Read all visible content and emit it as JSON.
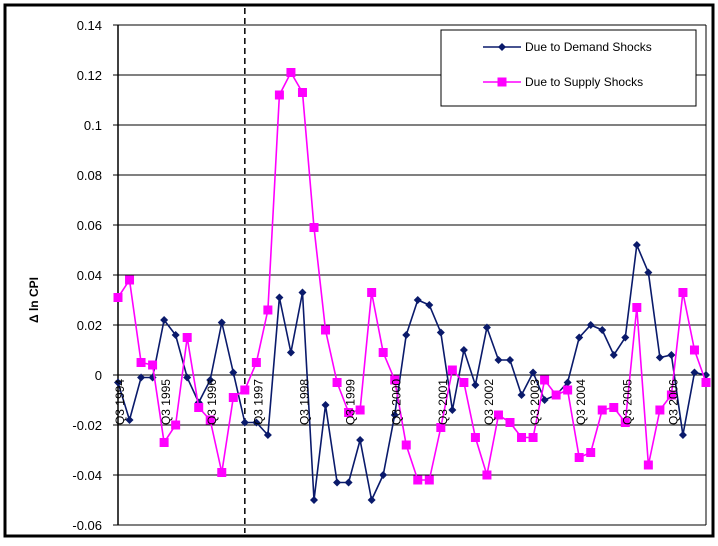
{
  "chart_data": {
    "type": "line",
    "title": "",
    "xlabel": "",
    "ylabel": "Δ ln CPI",
    "ylim": [
      -0.06,
      0.14
    ],
    "yticks": [
      -0.06,
      -0.04,
      -0.02,
      0,
      0.02,
      0.04,
      0.06,
      0.08,
      0.1,
      0.12,
      0.14
    ],
    "ytick_labels": [
      "-0.06",
      "-0.04",
      "-0.02",
      "0",
      "0.02",
      "0.04",
      "0.06",
      "0.08",
      "0.1",
      "0.12",
      "0.14"
    ],
    "grid": true,
    "legend_position": "top-right",
    "x_range": [
      1994.5,
      2007.25
    ],
    "x_tick_labels": [
      {
        "label": "Q3 1994",
        "x": 1994.5
      },
      {
        "label": "Q3 1995",
        "x": 1995.5
      },
      {
        "label": "Q3 1996",
        "x": 1996.5
      },
      {
        "label": "Q3 1997",
        "x": 1997.5
      },
      {
        "label": "Q3 1998",
        "x": 1998.5
      },
      {
        "label": "Q3 1999",
        "x": 1999.5
      },
      {
        "label": "Q3 2000",
        "x": 2000.5
      },
      {
        "label": "Q3 2001",
        "x": 2001.5
      },
      {
        "label": "Q3 2002",
        "x": 2002.5
      },
      {
        "label": "Q3 2003",
        "x": 2003.5
      },
      {
        "label": "Q3 2004",
        "x": 2004.5
      },
      {
        "label": "Q3 2005",
        "x": 2005.5
      },
      {
        "label": "Q3 2006",
        "x": 2006.5
      }
    ],
    "vline_x": 1997.25,
    "series": [
      {
        "name": "Due to Demand Shocks",
        "color": "#0a1a6b",
        "marker": "diamond",
        "x": [
          1994.5,
          1994.75,
          1995.0,
          1995.25,
          1995.5,
          1995.75,
          1996.0,
          1996.25,
          1996.5,
          1996.75,
          1997.0,
          1997.25,
          1997.5,
          1997.75,
          1998.0,
          1998.25,
          1998.5,
          1998.75,
          1999.0,
          1999.25,
          1999.5,
          1999.75,
          2000.0,
          2000.25,
          2000.5,
          2000.75,
          2001.0,
          2001.25,
          2001.5,
          2001.75,
          2002.0,
          2002.25,
          2002.5,
          2002.75,
          2003.0,
          2003.25,
          2003.5,
          2003.75,
          2004.0,
          2004.25,
          2004.5,
          2004.75,
          2005.0,
          2005.25,
          2005.5,
          2005.75,
          2006.0,
          2006.25,
          2006.5,
          2006.75,
          2007.0,
          2007.25
        ],
        "values": [
          -0.003,
          -0.018,
          -0.001,
          -0.001,
          0.022,
          0.016,
          -0.001,
          -0.011,
          -0.002,
          0.021,
          0.001,
          -0.019,
          -0.019,
          -0.024,
          0.031,
          0.009,
          0.033,
          -0.05,
          -0.012,
          -0.043,
          -0.043,
          -0.026,
          -0.05,
          -0.04,
          -0.016,
          0.016,
          0.03,
          0.028,
          0.017,
          -0.014,
          0.01,
          -0.004,
          0.019,
          0.006,
          0.006,
          -0.008,
          0.001,
          -0.01,
          -0.008,
          -0.003,
          0.015,
          0.02,
          0.018,
          0.008,
          0.015,
          0.052,
          0.041,
          0.007,
          0.008,
          -0.024,
          0.001,
          0.0
        ]
      },
      {
        "name": "Due to Supply Shocks",
        "color": "#ff00ff",
        "marker": "square",
        "x": [
          1994.5,
          1994.75,
          1995.0,
          1995.25,
          1995.5,
          1995.75,
          1996.0,
          1996.25,
          1996.5,
          1996.75,
          1997.0,
          1997.25,
          1997.5,
          1997.75,
          1998.0,
          1998.25,
          1998.5,
          1998.75,
          1999.0,
          1999.25,
          1999.5,
          1999.75,
          2000.0,
          2000.25,
          2000.5,
          2000.75,
          2001.0,
          2001.25,
          2001.5,
          2001.75,
          2002.0,
          2002.25,
          2002.5,
          2002.75,
          2003.0,
          2003.25,
          2003.5,
          2003.75,
          2004.0,
          2004.25,
          2004.5,
          2004.75,
          2005.0,
          2005.25,
          2005.5,
          2005.75,
          2006.0,
          2006.25,
          2006.5,
          2006.75,
          2007.0,
          2007.25
        ],
        "values": [
          0.031,
          0.038,
          0.005,
          0.004,
          -0.027,
          -0.02,
          0.015,
          -0.013,
          -0.018,
          -0.039,
          -0.009,
          -0.006,
          0.005,
          0.026,
          0.112,
          0.121,
          0.113,
          0.059,
          0.018,
          -0.003,
          -0.015,
          -0.014,
          0.033,
          0.009,
          -0.002,
          -0.028,
          -0.042,
          -0.042,
          -0.021,
          0.002,
          -0.003,
          -0.025,
          -0.04,
          -0.016,
          -0.019,
          -0.025,
          -0.025,
          -0.002,
          -0.008,
          -0.006,
          -0.033,
          -0.031,
          -0.014,
          -0.013,
          -0.019,
          0.027,
          -0.036,
          -0.014,
          -0.008,
          0.033,
          0.01,
          -0.003
        ]
      }
    ]
  }
}
